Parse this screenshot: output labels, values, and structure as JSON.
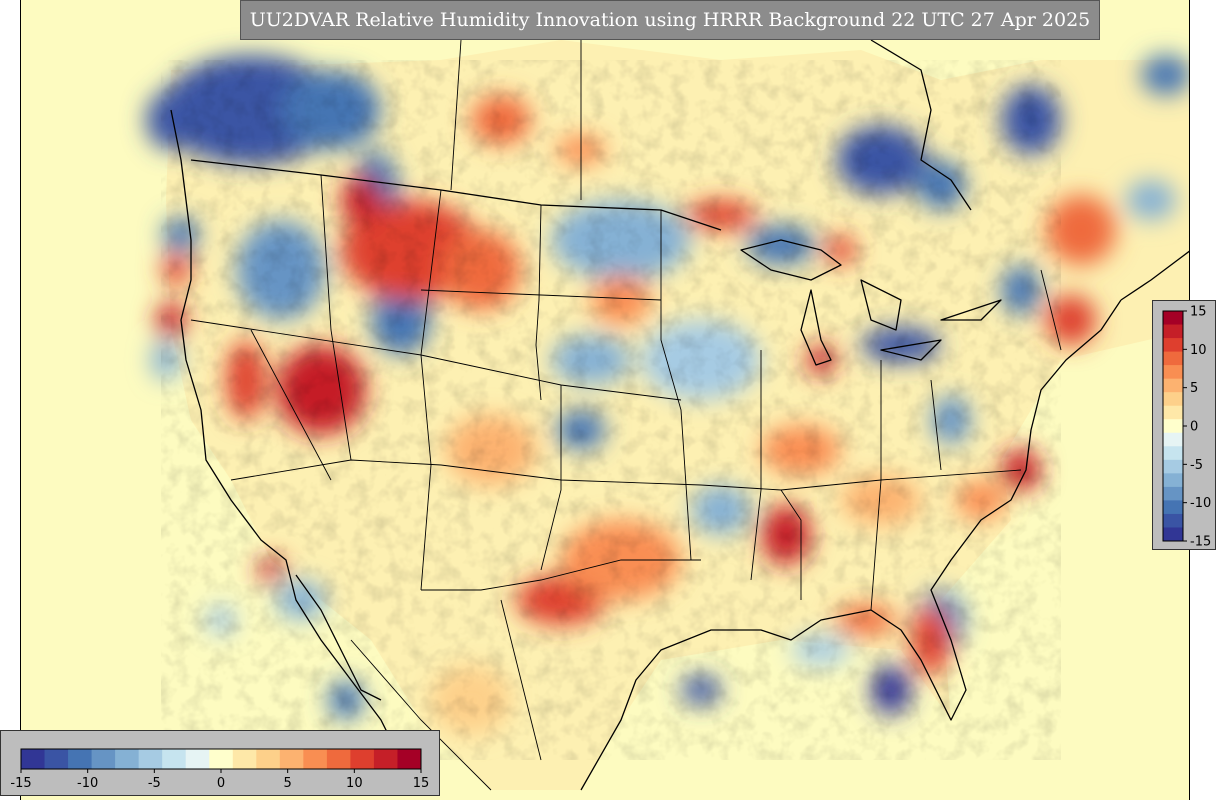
{
  "title": "UU2DVAR Relative Humidity Innovation using HRRR Background 22 UTC 27 Apr 2025",
  "colorbar": {
    "min": -15,
    "max": 15,
    "ticks_right": [
      "15",
      "10",
      "5",
      "0",
      "-5",
      "-10",
      "-15"
    ],
    "ticks_bottom": [
      "-15",
      "-10",
      "-5",
      "0",
      "5",
      "10",
      "15"
    ],
    "colors": [
      "#313695",
      "#3a54a4",
      "#4574b3",
      "#6694c4",
      "#85b1d4",
      "#a6cbe3",
      "#c6e4ef",
      "#e6f4f4",
      "#ffffcc",
      "#fee8a8",
      "#fdd08a",
      "#fcb270",
      "#f98e52",
      "#ef6a3d",
      "#de3f2e",
      "#c51f28",
      "#a50026"
    ]
  },
  "map": {
    "background_color": "#fdfbc0",
    "features": [
      "coastlines",
      "state boundaries",
      "country boundaries",
      "Mexico state boundaries"
    ]
  }
}
